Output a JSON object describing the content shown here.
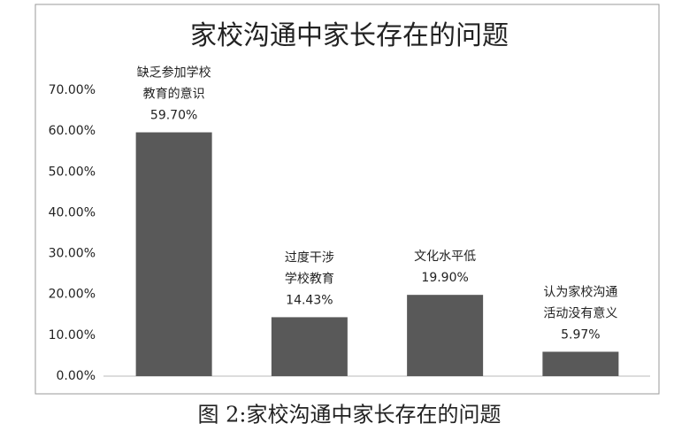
{
  "chart_data": {
    "type": "bar",
    "title": "家校沟通中家长存在的问题",
    "categories": [
      [
        "缺乏参加学校",
        "教育的意识"
      ],
      [
        "过度干涉",
        "学校教育"
      ],
      [
        "文化水平低"
      ],
      [
        "认为家校沟通",
        "活动没有意义"
      ]
    ],
    "values": [
      59.7,
      14.43,
      19.9,
      5.97
    ],
    "value_labels": [
      "59.70%",
      "14.43%",
      "19.90%",
      "5.97%"
    ],
    "color": "#595959",
    "ylim": [
      0,
      70
    ],
    "yticks": [
      {
        "value": 0,
        "label": "0.00%"
      },
      {
        "value": 10,
        "label": "10.00%"
      },
      {
        "value": 20,
        "label": "20.00%"
      },
      {
        "value": 30,
        "label": "30.00%"
      },
      {
        "value": 40,
        "label": "40.00%"
      },
      {
        "value": 50,
        "label": "50.00%"
      },
      {
        "value": 60,
        "label": "60.00%"
      },
      {
        "value": 70,
        "label": "70.00%"
      }
    ],
    "grid": false,
    "caption": "图 2:家校沟通中家长存在的问题"
  }
}
